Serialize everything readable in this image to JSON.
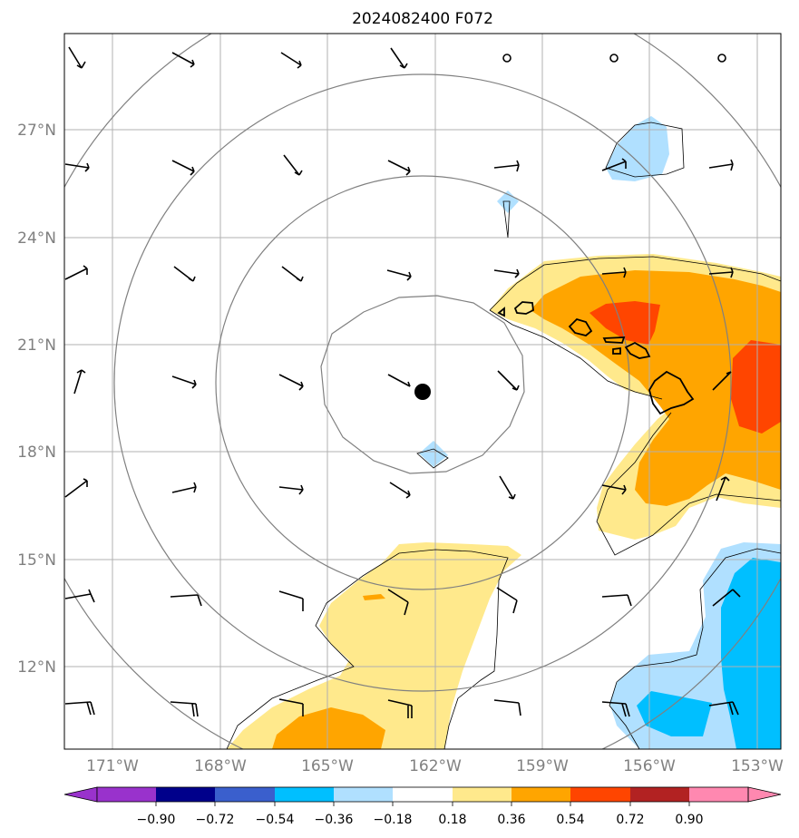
{
  "title": "2024082400 F072",
  "lat_ticks": [
    "27°N",
    "24°N",
    "21°N",
    "18°N",
    "15°N",
    "12°N"
  ],
  "lon_ticks": [
    "171°W",
    "168°W",
    "165°W",
    "162°W",
    "159°W",
    "156°W",
    "153°W"
  ],
  "colorbar": {
    "ticks": [
      "−0.90",
      "−0.72",
      "−0.54",
      "−0.36",
      "−0.18",
      "0.18",
      "0.36",
      "0.54",
      "0.72",
      "0.90"
    ],
    "colors": [
      "#9932cc",
      "#00008b",
      "#3a5fcd",
      "#00bfff",
      "#b0e0ff",
      "#ffffff",
      "#ffe98c",
      "#ffa500",
      "#ff4500",
      "#b22222",
      "#ff88b0"
    ]
  },
  "fill_colors": {
    "light_yellow": "#ffe98c",
    "orange": "#ffa500",
    "red_orange": "#ff4500",
    "light_blue": "#b0e0ff",
    "deep_sky_blue": "#00bfff"
  },
  "center_marker": {
    "lat": 19.7,
    "lon": -162.3
  }
}
